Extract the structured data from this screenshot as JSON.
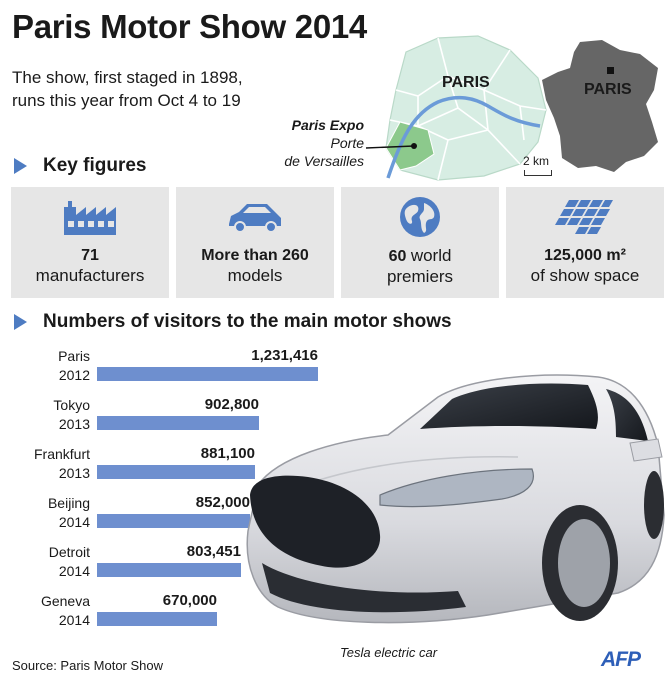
{
  "title": "Paris Motor Show 2014",
  "subtitle_line1": "The show, first staged in 1898,",
  "subtitle_line2": "runs this year from Oct 4 to 19",
  "map": {
    "city_label": "PARIS",
    "country_label": "PARIS",
    "venue_line1": "Paris Expo",
    "venue_line2": "Porte",
    "venue_line3": "de Versailles",
    "scale": "2 km",
    "colors": {
      "city": "#d7ede3",
      "venue": "#8cc98c",
      "river": "#6b9bd8",
      "country": "#666666"
    }
  },
  "key_figures": {
    "heading": "Key figures",
    "items": [
      {
        "icon": "factory-icon",
        "number": "71",
        "label": "manufacturers"
      },
      {
        "icon": "car-icon",
        "number": "More than 260",
        "label": "models"
      },
      {
        "icon": "globe-icon",
        "number": "60",
        "label_inline": "world",
        "label": "premiers"
      },
      {
        "icon": "solar-grid-icon",
        "number": "125,000 m²",
        "label": "of show space"
      }
    ]
  },
  "visitors": {
    "heading": "Numbers of visitors to the main motor shows",
    "bar_color": "#6e8fcf"
  },
  "chart_data": {
    "type": "bar",
    "title": "Numbers of visitors to the main motor shows",
    "categories": [
      "Paris 2012",
      "Tokyo 2013",
      "Frankfurt 2013",
      "Beijing 2014",
      "Detroit 2014",
      "Geneva 2014"
    ],
    "rows": [
      {
        "city": "Paris",
        "year": "2012",
        "value": 1231416,
        "label": "1,231,416"
      },
      {
        "city": "Tokyo",
        "year": "2013",
        "value": 902800,
        "label": "902,800"
      },
      {
        "city": "Frankfurt",
        "year": "2013",
        "value": 881100,
        "label": "881,100"
      },
      {
        "city": "Beijing",
        "year": "2014",
        "value": 852000,
        "label": "852,000"
      },
      {
        "city": "Detroit",
        "year": "2014",
        "value": 803451,
        "label": "803,451"
      },
      {
        "city": "Geneva",
        "year": "2014",
        "value": 670000,
        "label": "670,000"
      }
    ],
    "values": [
      1231416,
      902800,
      881100,
      852000,
      803451,
      670000
    ]
  },
  "car_caption": "Tesla electric car",
  "source": "Source: Paris Motor Show",
  "agency": "AFP"
}
